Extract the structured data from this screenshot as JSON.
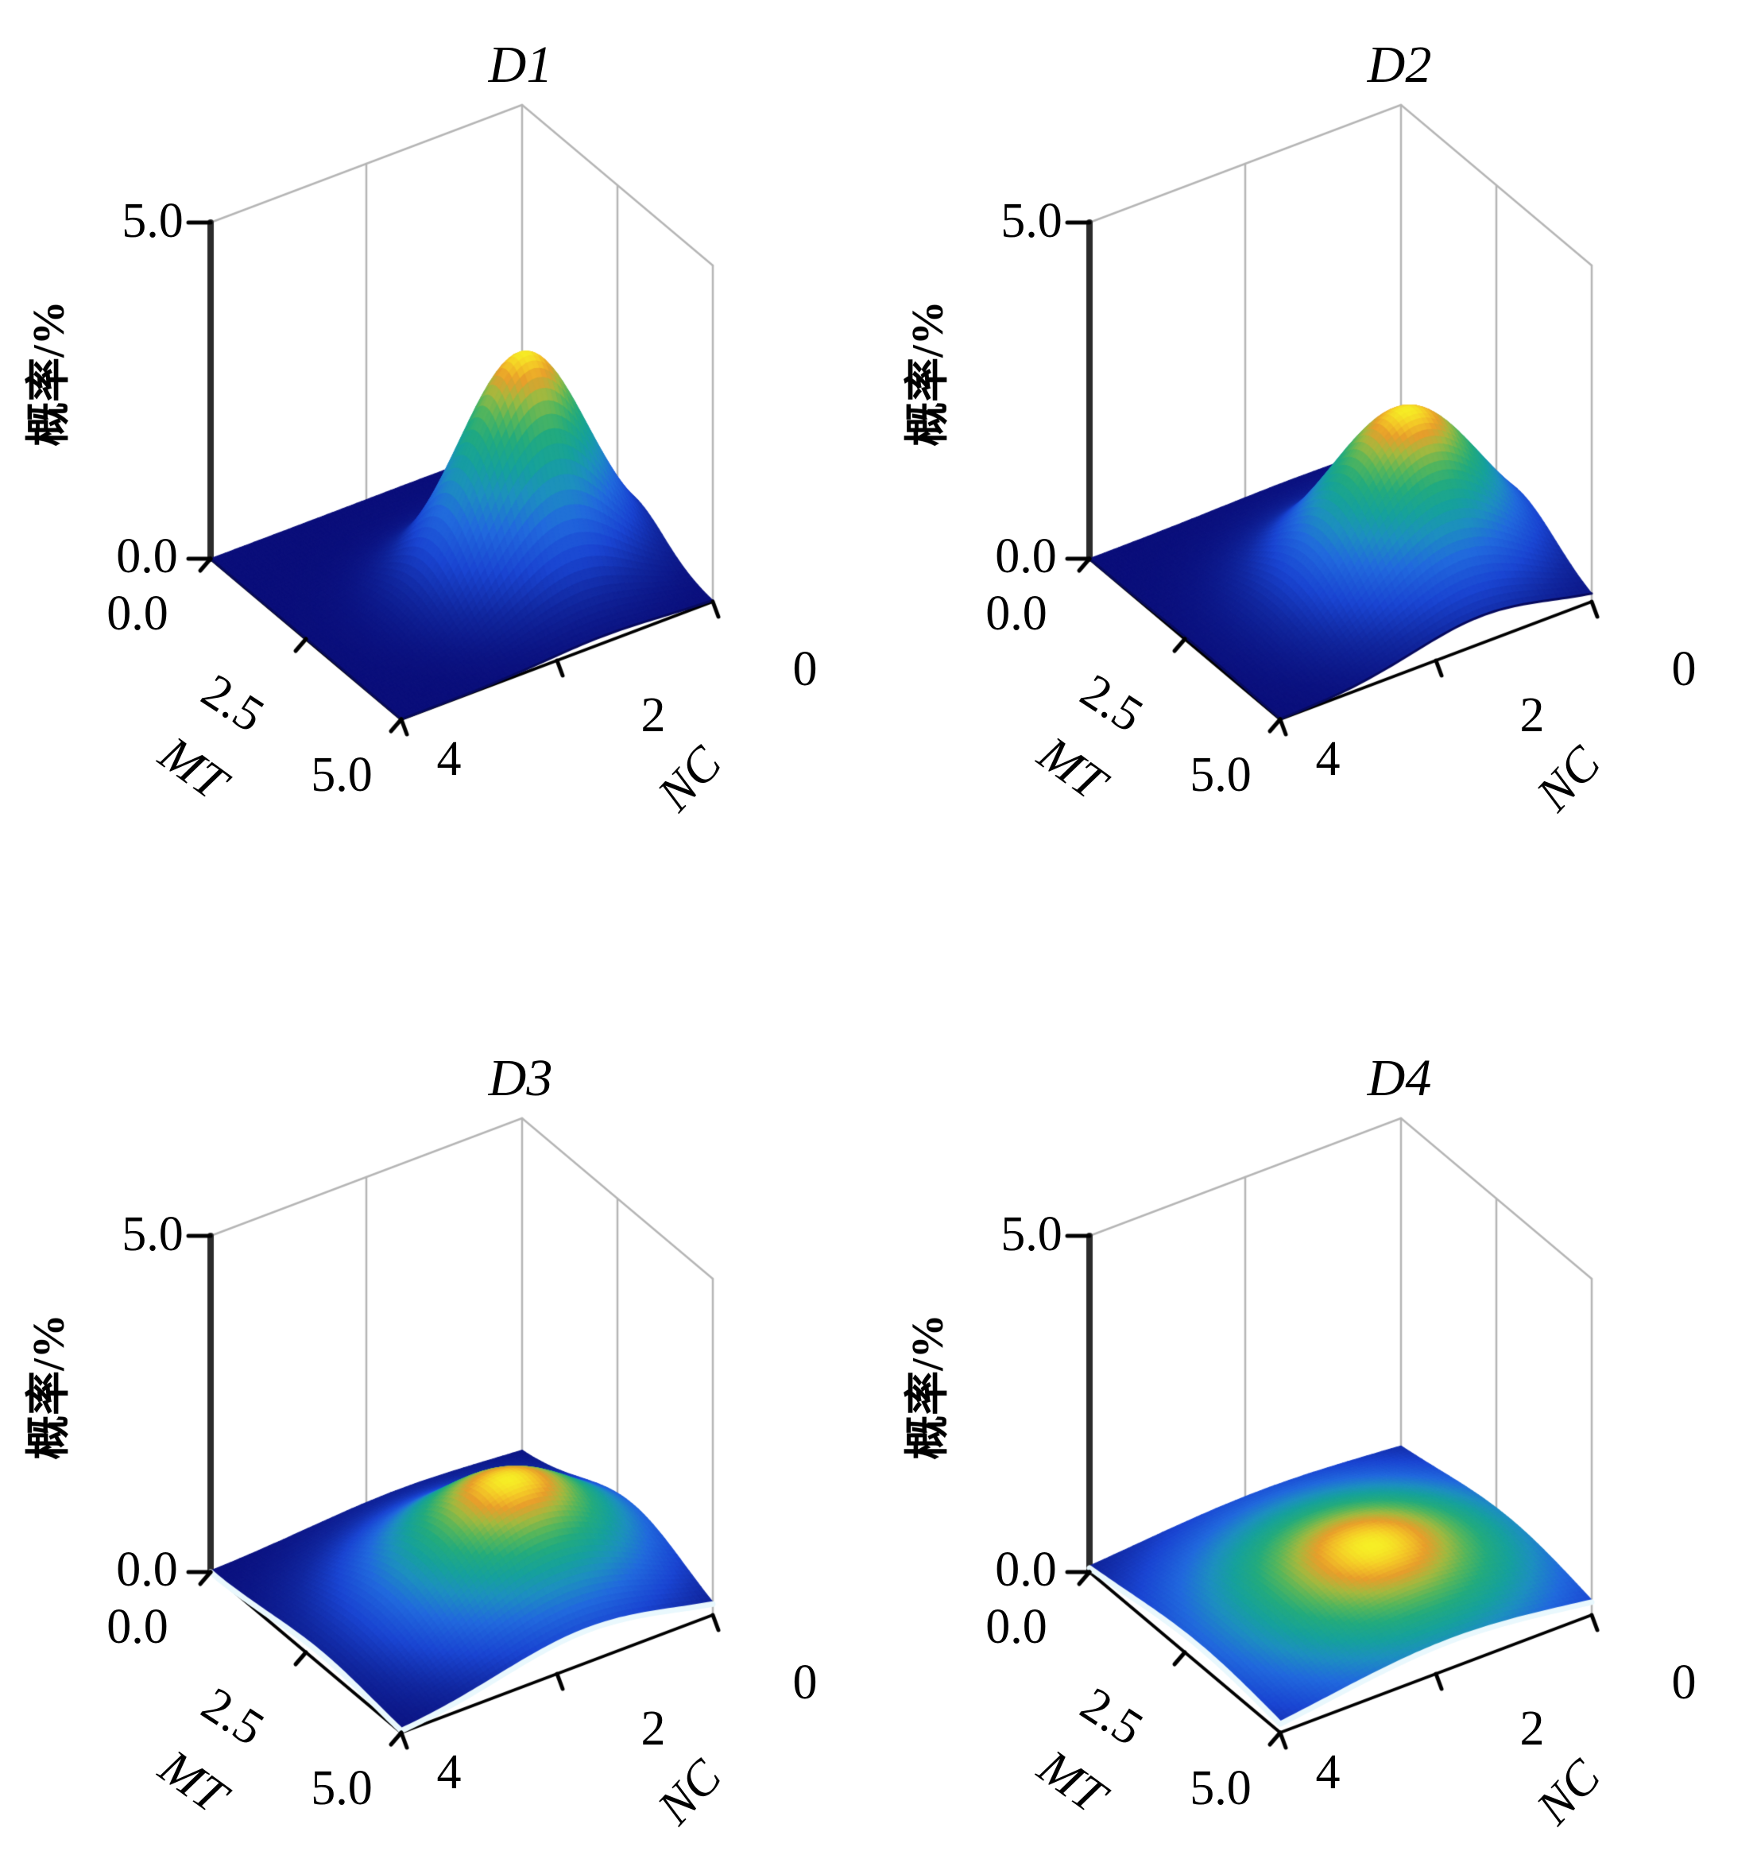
{
  "figure": {
    "background": "#ffffff",
    "grid_color": "#b5b5b5",
    "axis_color": "#000000",
    "z_axis_color": "#2b2b2b",
    "edge_highlight_color": "#e9f8fd",
    "edge_dark_color": "#070a5e",
    "colormap": [
      [
        0.0,
        "#0a0e7a"
      ],
      [
        0.13,
        "#11279f"
      ],
      [
        0.26,
        "#1a45d2"
      ],
      [
        0.4,
        "#2169dd"
      ],
      [
        0.52,
        "#1d8fc0"
      ],
      [
        0.62,
        "#16a19c"
      ],
      [
        0.72,
        "#23ab7d"
      ],
      [
        0.8,
        "#55b65c"
      ],
      [
        0.87,
        "#a3b93f"
      ],
      [
        0.93,
        "#e89e2b"
      ],
      [
        0.97,
        "#f4c827"
      ],
      [
        1.0,
        "#f6ef26"
      ]
    ]
  },
  "chart_data": [
    {
      "id": "D1",
      "title": "D1",
      "type": "surface",
      "xlabel": "MT",
      "ylabel": "NC",
      "zlabel": "概率/%",
      "x_range": [
        0,
        5
      ],
      "y_range": [
        0,
        4
      ],
      "z_range": [
        0,
        5
      ],
      "x_ticks": [
        "0.0",
        "2.5",
        "5.0"
      ],
      "y_ticks": [
        "4",
        "2",
        "0"
      ],
      "z_ticks": [
        "0.0",
        "5.0"
      ],
      "surface_model": {
        "kind": "bivariate_gaussian",
        "peak_mt": 2.9,
        "peak_nc": 1.4,
        "peak_probability_pct": 3.3,
        "sigma_mt": 0.8,
        "sigma_nc": 0.75
      },
      "front_edge_highlight": false
    },
    {
      "id": "D2",
      "title": "D2",
      "type": "surface",
      "xlabel": "MT",
      "ylabel": "NC",
      "zlabel": "概率/%",
      "x_range": [
        0,
        5
      ],
      "y_range": [
        0,
        4
      ],
      "z_range": [
        0,
        5
      ],
      "x_ticks": [
        "0.0",
        "2.5",
        "5.0"
      ],
      "y_ticks": [
        "4",
        "2",
        "0"
      ],
      "z_ticks": [
        "0.0",
        "5.0"
      ],
      "surface_model": {
        "kind": "bivariate_gaussian",
        "peak_mt": 3.0,
        "peak_nc": 1.4,
        "peak_probability_pct": 2.5,
        "sigma_mt": 1.05,
        "sigma_nc": 0.9
      },
      "front_edge_highlight": false
    },
    {
      "id": "D3",
      "title": "D3",
      "type": "surface",
      "xlabel": "MT",
      "ylabel": "NC",
      "zlabel": "概率/%",
      "x_range": [
        0,
        5
      ],
      "y_range": [
        0,
        4
      ],
      "z_range": [
        0,
        5
      ],
      "x_ticks": [
        "0.0",
        "2.5",
        "5.0"
      ],
      "y_ticks": [
        "4",
        "2",
        "0"
      ],
      "z_ticks": [
        "0.0",
        "5.0"
      ],
      "surface_model": {
        "kind": "bivariate_gaussian",
        "peak_mt": 2.9,
        "peak_nc": 1.6,
        "peak_probability_pct": 1.7,
        "sigma_mt": 1.35,
        "sigma_nc": 1.15
      },
      "front_edge_highlight": true
    },
    {
      "id": "D4",
      "title": "D4",
      "type": "surface",
      "xlabel": "MT",
      "ylabel": "NC",
      "zlabel": "概率/%",
      "x_range": [
        0,
        5
      ],
      "y_range": [
        0,
        4
      ],
      "z_range": [
        0,
        5
      ],
      "x_ticks": [
        "0.0",
        "2.5",
        "5.0"
      ],
      "y_ticks": [
        "4",
        "2",
        "0"
      ],
      "z_ticks": [
        "0.0",
        "5.0"
      ],
      "surface_model": {
        "kind": "bivariate_gaussian",
        "peak_mt": 2.9,
        "peak_nc": 1.8,
        "peak_probability_pct": 0.8,
        "sigma_mt": 1.9,
        "sigma_nc": 1.55
      },
      "front_edge_highlight": true
    }
  ]
}
